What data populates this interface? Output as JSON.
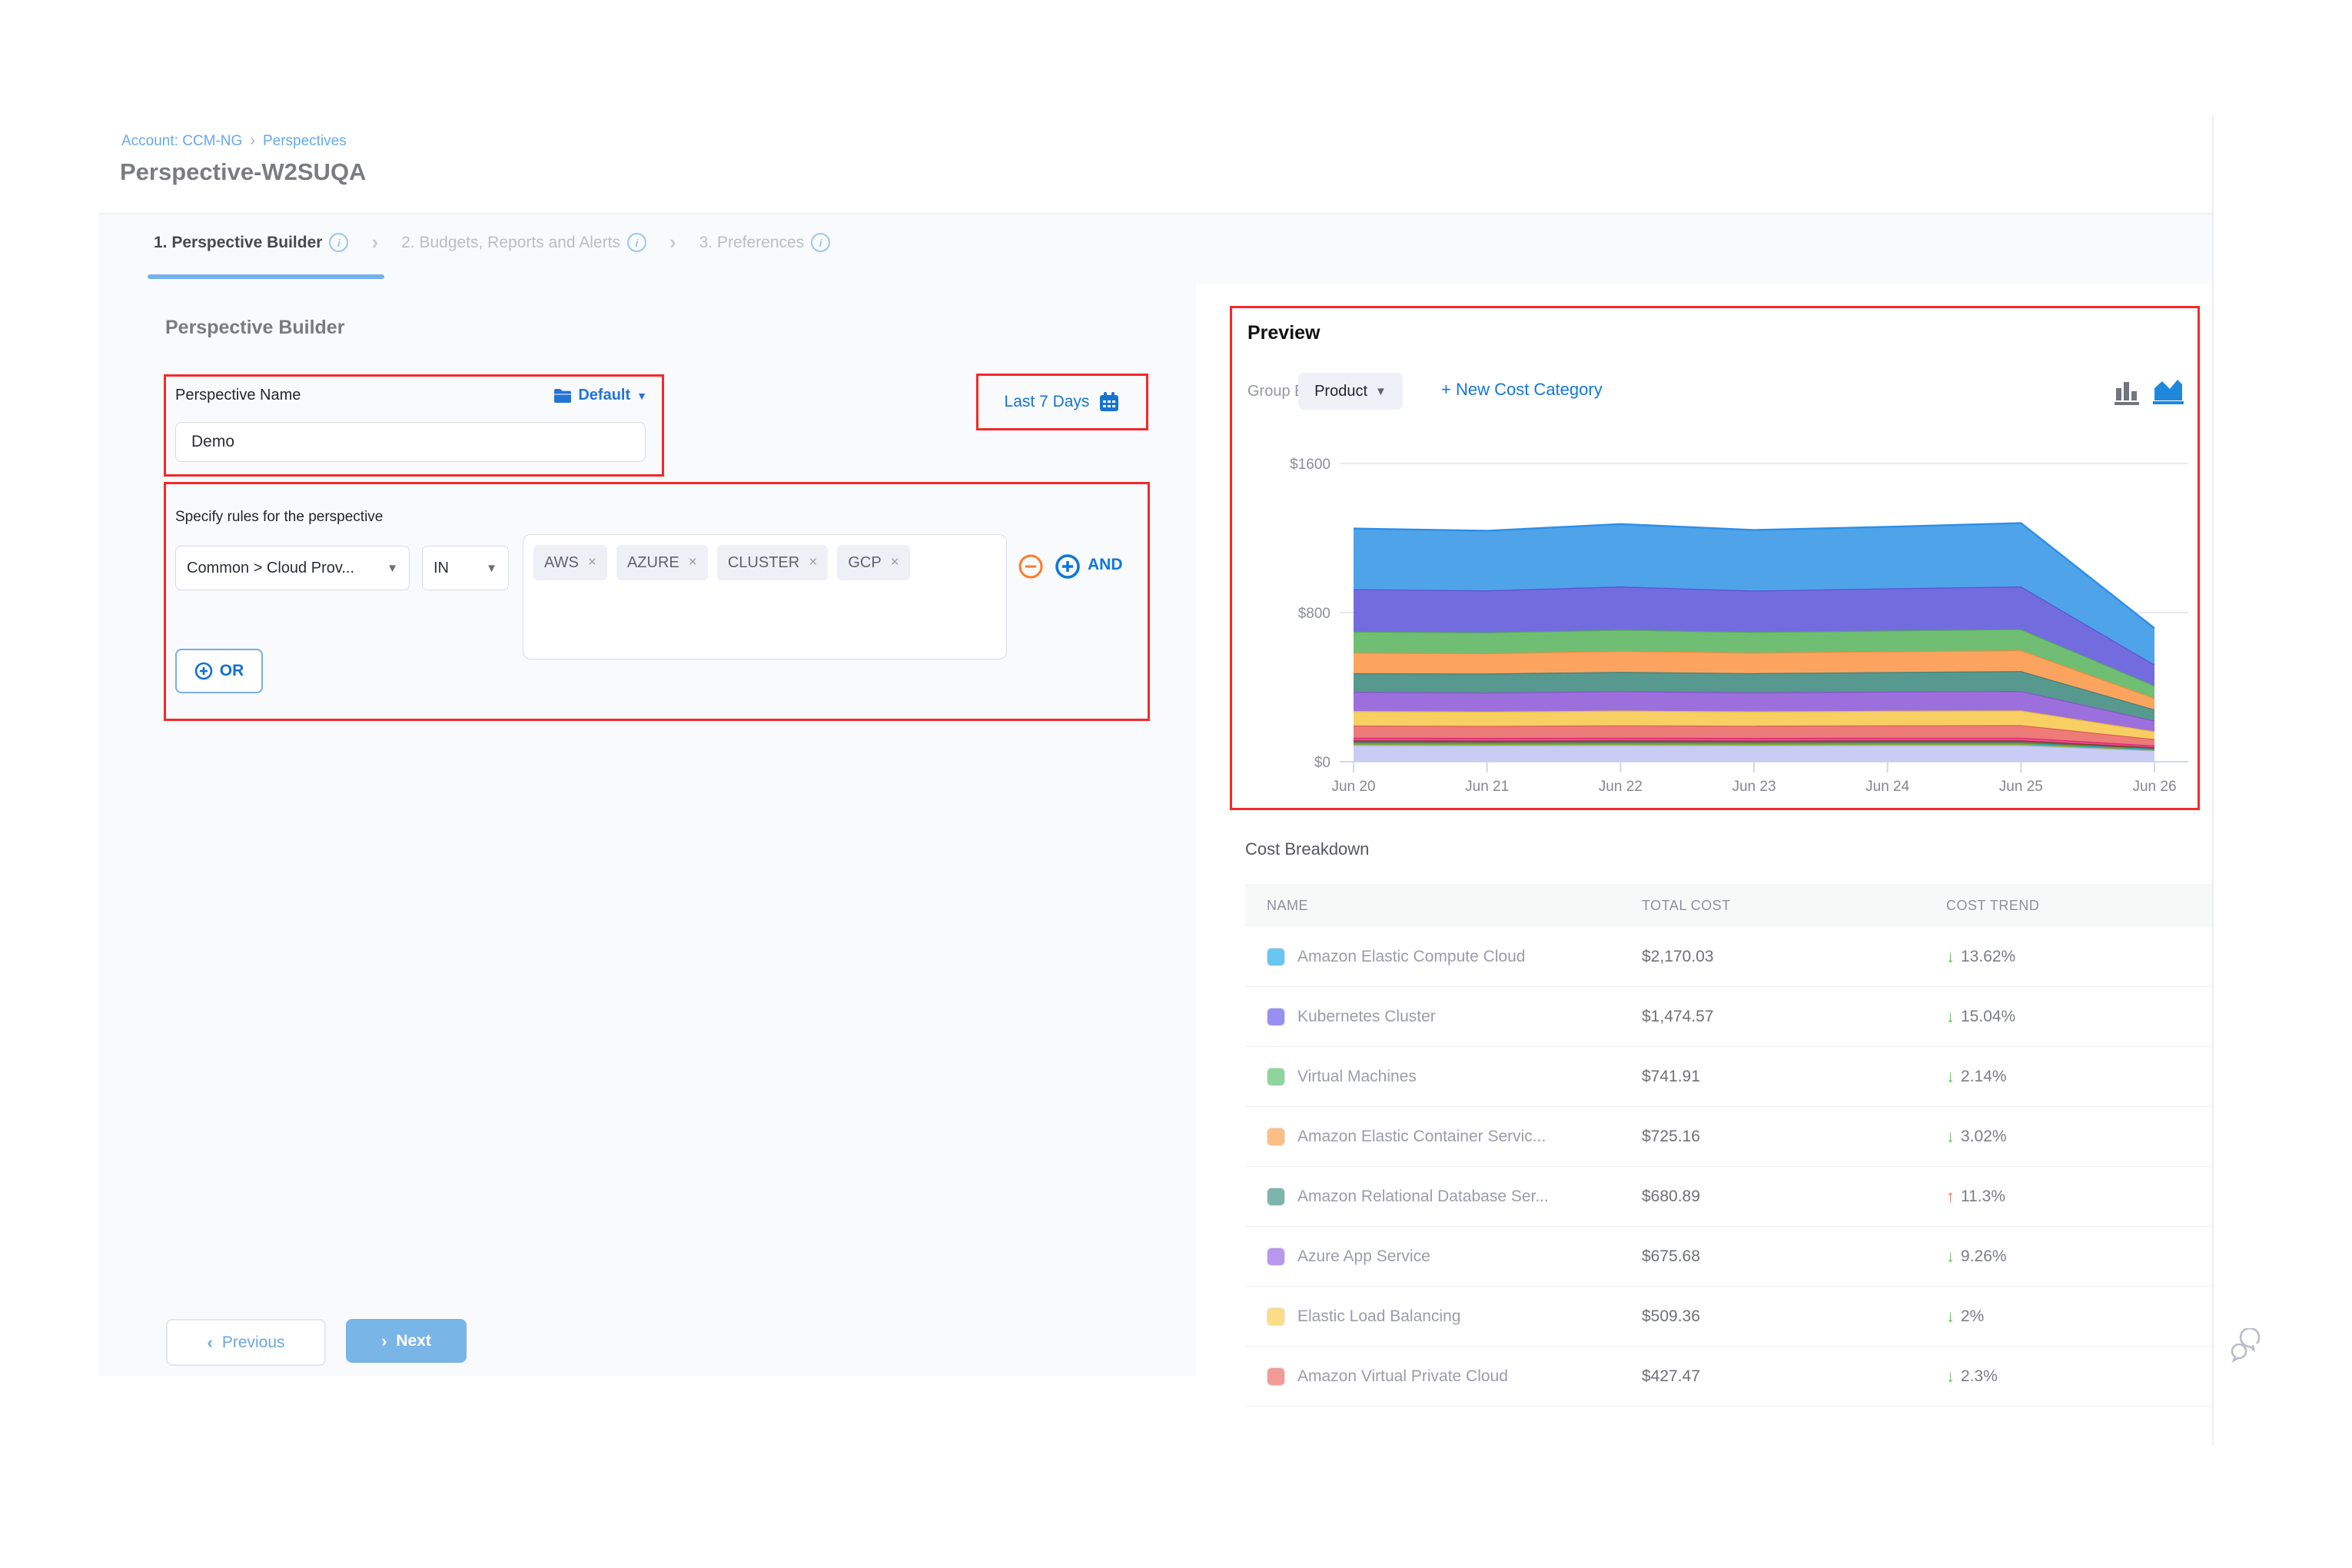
{
  "breadcrumb": {
    "account": "Account: CCM-NG",
    "separator": "›",
    "section": "Perspectives"
  },
  "title": "Perspective-W2SUQA",
  "tabs": [
    {
      "label": "1. Perspective Builder",
      "active": true
    },
    {
      "label": "2. Budgets, Reports and Alerts",
      "active": false
    },
    {
      "label": "3. Preferences",
      "active": false
    }
  ],
  "builder": {
    "heading": "Perspective Builder",
    "name_label": "Perspective Name",
    "folder_label": "Default",
    "name_value": "Demo",
    "rules_label": "Specify rules for the perspective",
    "rule": {
      "field": "Common > Cloud Prov...",
      "operator": "IN",
      "values": [
        "AWS",
        "AZURE",
        "CLUSTER",
        "GCP"
      ]
    },
    "and_label": "AND",
    "or_label": "OR"
  },
  "date_range": {
    "label": "Last 7 Days"
  },
  "footer": {
    "previous": "Previous",
    "next": "Next"
  },
  "preview": {
    "title": "Preview",
    "group_by_label": "Group By",
    "group_by_value": "Product",
    "new_cost_category": "+ New Cost Category"
  },
  "chart_data": {
    "type": "area",
    "stacked": true,
    "x": [
      "Jun 20",
      "Jun 21",
      "Jun 22",
      "Jun 23",
      "Jun 24",
      "Jun 25",
      "Jun 26"
    ],
    "ylim": [
      0,
      1600
    ],
    "yticks": [
      {
        "value": 0,
        "label": "$0"
      },
      {
        "value": 800,
        "label": "$800"
      },
      {
        "value": 1600,
        "label": "$1600"
      }
    ],
    "grid": true,
    "legend": false,
    "series_bottom_to_top": [
      {
        "name": "lavender (unlabeled)",
        "color": "#c9cdf6",
        "edge": "#aab2ee",
        "values": [
          88,
          87,
          88,
          87,
          88,
          88,
          60
        ]
      },
      {
        "name": "olive (unlabeled)",
        "color": "#9dbe3a",
        "edge": "#84a32b",
        "values": [
          8,
          8,
          8,
          8,
          8,
          8,
          5
        ]
      },
      {
        "name": "cyan (unlabeled)",
        "color": "#2bc2da",
        "edge": "#17a8c0",
        "values": [
          6,
          6,
          6,
          6,
          6,
          6,
          4
        ]
      },
      {
        "name": "brown (unlabeled)",
        "color": "#8a5b33",
        "edge": "#6f4722",
        "values": [
          12,
          12,
          12,
          12,
          12,
          12,
          8
        ]
      },
      {
        "name": "pink (unlabeled)",
        "color": "#f24795",
        "edge": "#de2678",
        "values": [
          15,
          15,
          15,
          15,
          15,
          15,
          10
        ]
      },
      {
        "name": "Amazon Virtual Private Cloud",
        "color": "#ed7c78",
        "edge": "#df5b57",
        "values": [
          65,
          64,
          66,
          65,
          66,
          67,
          34.47
        ]
      },
      {
        "name": "Elastic Load Balancing",
        "color": "#f7cf63",
        "edge": "#eaba37",
        "values": [
          78,
          77,
          79,
          77,
          78,
          79,
          41.36
        ]
      },
      {
        "name": "Azure App Service",
        "color": "#9c6fdc",
        "edge": "#8354c8",
        "values": [
          103,
          102,
          104,
          102,
          103,
          104,
          57.68
        ]
      },
      {
        "name": "Amazon Relational Database Service",
        "color": "#57988f",
        "edge": "#417f77",
        "values": [
          100,
          102,
          104,
          103,
          105,
          107,
          59.89
        ]
      },
      {
        "name": "Amazon Elastic Container Service",
        "color": "#fba460",
        "edge": "#f18a3c",
        "values": [
          110,
          109,
          112,
          110,
          111,
          112,
          61.16
        ]
      },
      {
        "name": "Virtual Machines",
        "color": "#70be74",
        "edge": "#54a85a",
        "values": [
          113,
          112,
          114,
          111,
          112,
          113,
          66.91
        ]
      },
      {
        "name": "Kubernetes Cluster",
        "color": "#736cdf",
        "edge": "#5a50d4",
        "values": [
          228,
          225,
          232,
          222,
          226,
          229,
          112.57
        ]
      },
      {
        "name": "Amazon Elastic Compute Cloud",
        "color": "#4fa3e8",
        "edge": "#2b8fe8",
        "values": [
          325,
          320,
          335,
          325,
          330,
          340,
          195.03
        ]
      }
    ]
  },
  "cost_breakdown": {
    "title": "Cost Breakdown",
    "columns": [
      "NAME",
      "TOTAL COST",
      "COST TREND"
    ],
    "rows": [
      {
        "name": "Amazon Elastic Compute Cloud",
        "swatch": "#67c6f2",
        "total_cost": "$2,170.03",
        "trend": "13.62%",
        "direction": "down"
      },
      {
        "name": "Kubernetes Cluster",
        "swatch": "#998ff2",
        "total_cost": "$1,474.57",
        "trend": "15.04%",
        "direction": "down"
      },
      {
        "name": "Virtual Machines",
        "swatch": "#8ed59b",
        "total_cost": "$741.91",
        "trend": "2.14%",
        "direction": "down"
      },
      {
        "name": "Amazon Elastic Container Servic...",
        "swatch": "#fcbe85",
        "total_cost": "$725.16",
        "trend": "3.02%",
        "direction": "down"
      },
      {
        "name": "Amazon Relational Database Ser...",
        "swatch": "#7db4ab",
        "total_cost": "$680.89",
        "trend": "11.3%",
        "direction": "up"
      },
      {
        "name": "Azure App Service",
        "swatch": "#b897ec",
        "total_cost": "$675.68",
        "trend": "9.26%",
        "direction": "down"
      },
      {
        "name": "Elastic Load Balancing",
        "swatch": "#fadd84",
        "total_cost": "$509.36",
        "trend": "2%",
        "direction": "down"
      },
      {
        "name": "Amazon Virtual Private Cloud",
        "swatch": "#f29b96",
        "total_cost": "$427.47",
        "trend": "2.3%",
        "direction": "down"
      }
    ]
  }
}
